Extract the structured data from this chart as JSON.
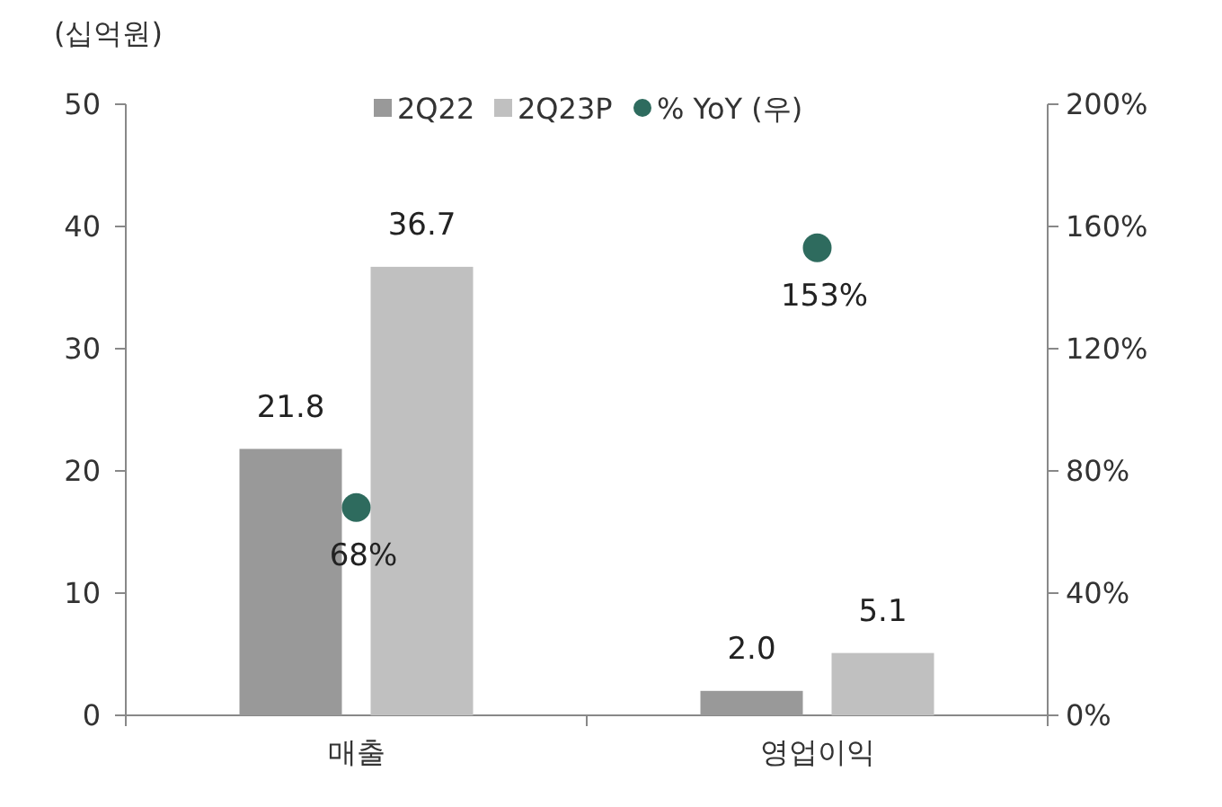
{
  "chart_data": {
    "type": "bar",
    "ylabel": "(십억원)",
    "categories": [
      "매출",
      "영업이익"
    ],
    "series": [
      {
        "name": "2Q22",
        "color": "#999999",
        "values": [
          21.8,
          2.0
        ],
        "value_labels": [
          "21.8",
          "2.0"
        ]
      },
      {
        "name": "2Q23P",
        "color": "#c0c0c0",
        "values": [
          36.7,
          5.1
        ],
        "value_labels": [
          "36.7",
          "5.1"
        ]
      },
      {
        "name": "% YoY (우)",
        "type": "scatter",
        "axis": "y2",
        "color": "#2e6b5e",
        "values": [
          68,
          153
        ],
        "value_labels": [
          "68%",
          "153%"
        ]
      }
    ],
    "ylim": [
      0,
      50
    ],
    "yticks": [
      0,
      10,
      20,
      30,
      40,
      50
    ],
    "y2lim": [
      0,
      200
    ],
    "y2ticks": [
      {
        "value": 0,
        "label": "0%"
      },
      {
        "value": 40,
        "label": "40%"
      },
      {
        "value": 80,
        "label": "80%"
      },
      {
        "value": 120,
        "label": "120%"
      },
      {
        "value": 160,
        "label": "160%"
      },
      {
        "value": 200,
        "label": "200%"
      }
    ],
    "legend": "top",
    "grid": false,
    "marker": "circle"
  }
}
